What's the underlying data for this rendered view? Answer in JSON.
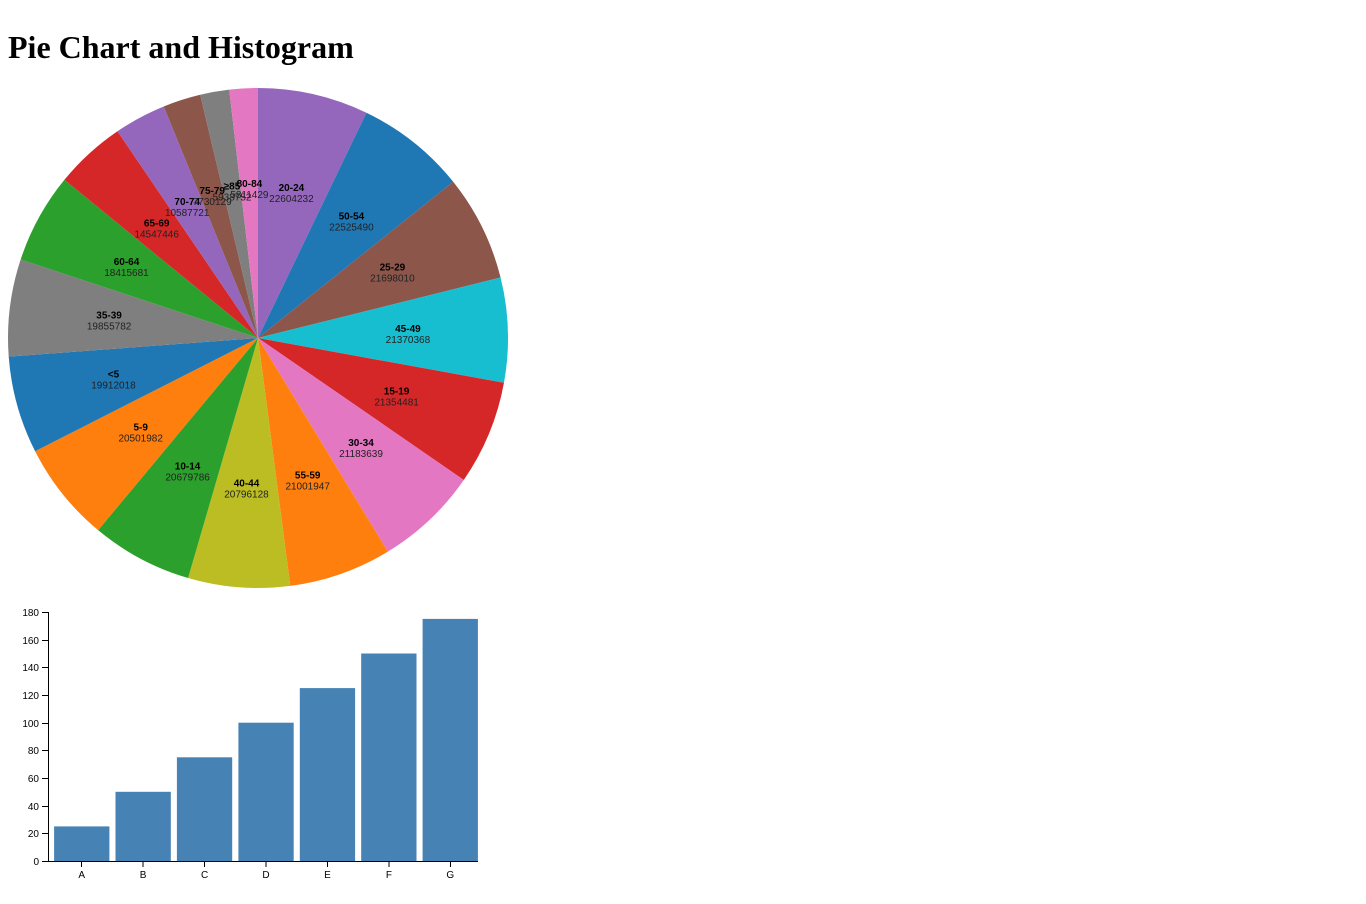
{
  "page": {
    "title": "Pie Chart and Histogram"
  },
  "chart_data": [
    {
      "type": "pie",
      "title": "",
      "slices": [
        {
          "label": "20-24",
          "value": 22604232,
          "color": "#9467bd"
        },
        {
          "label": "50-54",
          "value": 22525490,
          "color": "#1f77b4"
        },
        {
          "label": "25-29",
          "value": 21698010,
          "color": "#8c564b"
        },
        {
          "label": "45-49",
          "value": 21370368,
          "color": "#17becf"
        },
        {
          "label": "15-19",
          "value": 21354481,
          "color": "#d62728"
        },
        {
          "label": "30-34",
          "value": 21183639,
          "color": "#e377c2"
        },
        {
          "label": "55-59",
          "value": 21001947,
          "color": "#ff7f0e"
        },
        {
          "label": "40-44",
          "value": 20796128,
          "color": "#bcbd22"
        },
        {
          "label": "10-14",
          "value": 20679786,
          "color": "#2ca02c"
        },
        {
          "label": "5-9",
          "value": 20501982,
          "color": "#ff7f0e"
        },
        {
          "label": "<5",
          "value": 19912018,
          "color": "#1f77b4"
        },
        {
          "label": "35-39",
          "value": 19855782,
          "color": "#7f7f7f"
        },
        {
          "label": "60-64",
          "value": 18415681,
          "color": "#2ca02c"
        },
        {
          "label": "65-69",
          "value": 14547446,
          "color": "#d62728"
        },
        {
          "label": "70-74",
          "value": 10587721,
          "color": "#9467bd"
        },
        {
          "label": "75-79",
          "value": 7730129,
          "color": "#8c564b"
        },
        {
          "label": "≥85",
          "value": 5938752,
          "color": "#7f7f7f"
        },
        {
          "label": "80-84",
          "value": 5811429,
          "color": "#e377c2"
        }
      ]
    },
    {
      "type": "bar",
      "title": "",
      "xlabel": "",
      "ylabel": "",
      "categories": [
        "A",
        "B",
        "C",
        "D",
        "E",
        "F",
        "G"
      ],
      "values": [
        25,
        50,
        75,
        100,
        125,
        150,
        175
      ],
      "ylim": [
        0,
        180
      ],
      "yticks": [
        0,
        20,
        40,
        60,
        80,
        100,
        120,
        140,
        160,
        180
      ],
      "bar_color": "#4682b4",
      "grid": false
    }
  ]
}
